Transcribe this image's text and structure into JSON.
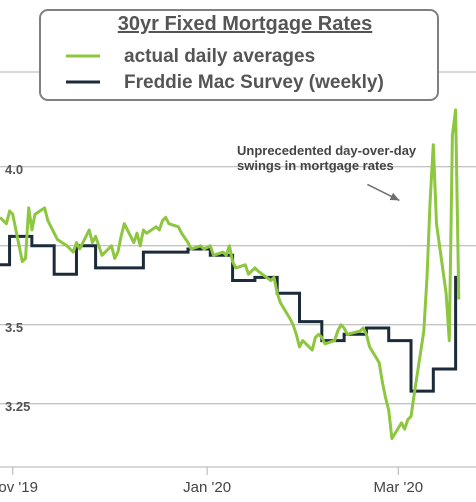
{
  "colors": {
    "actual": "#8dc63f",
    "survey": "#1b2b3a",
    "grid": "#b0b0b0",
    "arrow": "#6d6d6d"
  },
  "chart_data": {
    "type": "line",
    "title": "30yr Fixed Mortgage Rates",
    "xlabel": "",
    "ylabel": "",
    "ylim": [
      3.05,
      4.3
    ],
    "xlim": [
      "2019-10-28",
      "2020-03-21"
    ],
    "y_ticks": [
      {
        "value": 4.0,
        "label": "4.0"
      },
      {
        "value": 3.75,
        "label": ""
      },
      {
        "value": 3.5,
        "label": "3.5"
      },
      {
        "value": 3.25,
        "label": "3.25"
      }
    ],
    "x_ticks": [
      {
        "date": "2019-11-01",
        "label": "Nov '19"
      },
      {
        "date": "2020-01-01",
        "label": "Jan '20"
      },
      {
        "date": "2020-03-01",
        "label": "Mar '20"
      }
    ],
    "grid": true,
    "legend_position": "top",
    "annotation": {
      "lines": [
        "Unprecedented day-over-day",
        "swings in mortgage rates"
      ],
      "points_to": {
        "date": "2020-03-07",
        "value": 3.9
      }
    },
    "series": [
      {
        "name": "actual daily averages",
        "style": "line",
        "points": [
          [
            "2019-10-28",
            3.84
          ],
          [
            "2019-10-29",
            3.83
          ],
          [
            "2019-10-30",
            3.82
          ],
          [
            "2019-10-31",
            3.86
          ],
          [
            "2019-11-01",
            3.85
          ],
          [
            "2019-11-04",
            3.7
          ],
          [
            "2019-11-05",
            3.71
          ],
          [
            "2019-11-06",
            3.87
          ],
          [
            "2019-11-07",
            3.8
          ],
          [
            "2019-11-08",
            3.85
          ],
          [
            "2019-11-11",
            3.87
          ],
          [
            "2019-11-12",
            3.83
          ],
          [
            "2019-11-13",
            3.81
          ],
          [
            "2019-11-14",
            3.79
          ],
          [
            "2019-11-15",
            3.77
          ],
          [
            "2019-11-18",
            3.75
          ],
          [
            "2019-11-19",
            3.74
          ],
          [
            "2019-11-20",
            3.73
          ],
          [
            "2019-11-21",
            3.76
          ],
          [
            "2019-11-22",
            3.74
          ],
          [
            "2019-11-25",
            3.8
          ],
          [
            "2019-11-26",
            3.76
          ],
          [
            "2019-11-27",
            3.78
          ],
          [
            "2019-11-29",
            3.72
          ],
          [
            "2019-12-02",
            3.75
          ],
          [
            "2019-12-03",
            3.71
          ],
          [
            "2019-12-04",
            3.73
          ],
          [
            "2019-12-05",
            3.78
          ],
          [
            "2019-12-06",
            3.82
          ],
          [
            "2019-12-09",
            3.76
          ],
          [
            "2019-12-10",
            3.79
          ],
          [
            "2019-12-11",
            3.75
          ],
          [
            "2019-12-12",
            3.8
          ],
          [
            "2019-12-13",
            3.79
          ],
          [
            "2019-12-16",
            3.81
          ],
          [
            "2019-12-17",
            3.8
          ],
          [
            "2019-12-18",
            3.83
          ],
          [
            "2019-12-19",
            3.84
          ],
          [
            "2019-12-20",
            3.82
          ],
          [
            "2019-12-23",
            3.81
          ],
          [
            "2019-12-24",
            3.79
          ],
          [
            "2019-12-26",
            3.76
          ],
          [
            "2019-12-27",
            3.74
          ],
          [
            "2019-12-30",
            3.75
          ],
          [
            "2019-12-31",
            3.74
          ],
          [
            "2020-01-02",
            3.75
          ],
          [
            "2020-01-03",
            3.72
          ],
          [
            "2020-01-06",
            3.73
          ],
          [
            "2020-01-07",
            3.72
          ],
          [
            "2020-01-08",
            3.75
          ],
          [
            "2020-01-09",
            3.7
          ],
          [
            "2020-01-10",
            3.68
          ],
          [
            "2020-01-13",
            3.69
          ],
          [
            "2020-01-14",
            3.66
          ],
          [
            "2020-01-15",
            3.67
          ],
          [
            "2020-01-16",
            3.68
          ],
          [
            "2020-01-17",
            3.67
          ],
          [
            "2020-01-21",
            3.64
          ],
          [
            "2020-01-22",
            3.65
          ],
          [
            "2020-01-23",
            3.6
          ],
          [
            "2020-01-24",
            3.57
          ],
          [
            "2020-01-27",
            3.52
          ],
          [
            "2020-01-28",
            3.5
          ],
          [
            "2020-01-29",
            3.47
          ],
          [
            "2020-01-30",
            3.43
          ],
          [
            "2020-01-31",
            3.45
          ],
          [
            "2020-02-03",
            3.42
          ],
          [
            "2020-02-04",
            3.46
          ],
          [
            "2020-02-05",
            3.47
          ],
          [
            "2020-02-06",
            3.46
          ],
          [
            "2020-02-07",
            3.44
          ],
          [
            "2020-02-10",
            3.45
          ],
          [
            "2020-02-11",
            3.48
          ],
          [
            "2020-02-12",
            3.5
          ],
          [
            "2020-02-13",
            3.49
          ],
          [
            "2020-02-14",
            3.47
          ],
          [
            "2020-02-18",
            3.48
          ],
          [
            "2020-02-19",
            3.49
          ],
          [
            "2020-02-20",
            3.47
          ],
          [
            "2020-02-21",
            3.43
          ],
          [
            "2020-02-24",
            3.38
          ],
          [
            "2020-02-25",
            3.32
          ],
          [
            "2020-02-26",
            3.27
          ],
          [
            "2020-02-27",
            3.23
          ],
          [
            "2020-02-28",
            3.14
          ],
          [
            "2020-03-02",
            3.19
          ],
          [
            "2020-03-03",
            3.17
          ],
          [
            "2020-03-04",
            3.2
          ],
          [
            "2020-03-05",
            3.21
          ],
          [
            "2020-03-06",
            3.28
          ],
          [
            "2020-03-09",
            3.48
          ],
          [
            "2020-03-10",
            3.65
          ],
          [
            "2020-03-11",
            3.89
          ],
          [
            "2020-03-12",
            4.07
          ],
          [
            "2020-03-13",
            3.82
          ],
          [
            "2020-03-16",
            3.6
          ],
          [
            "2020-03-17",
            3.45
          ],
          [
            "2020-03-18",
            4.1
          ],
          [
            "2020-03-19",
            4.18
          ],
          [
            "2020-03-20",
            3.58
          ]
        ]
      },
      {
        "name": "Freddie Mac Survey (weekly)",
        "style": "step",
        "points": [
          [
            "2019-10-28",
            3.69
          ],
          [
            "2019-10-31",
            3.78
          ],
          [
            "2019-11-07",
            3.75
          ],
          [
            "2019-11-14",
            3.66
          ],
          [
            "2019-11-21",
            3.75
          ],
          [
            "2019-11-27",
            3.68
          ],
          [
            "2019-12-05",
            3.68
          ],
          [
            "2019-12-12",
            3.73
          ],
          [
            "2019-12-19",
            3.73
          ],
          [
            "2019-12-26",
            3.74
          ],
          [
            "2020-01-02",
            3.72
          ],
          [
            "2020-01-09",
            3.64
          ],
          [
            "2020-01-16",
            3.65
          ],
          [
            "2020-01-23",
            3.6
          ],
          [
            "2020-01-30",
            3.51
          ],
          [
            "2020-02-06",
            3.45
          ],
          [
            "2020-02-13",
            3.47
          ],
          [
            "2020-02-20",
            3.49
          ],
          [
            "2020-02-27",
            3.45
          ],
          [
            "2020-03-05",
            3.29
          ],
          [
            "2020-03-12",
            3.36
          ],
          [
            "2020-03-19",
            3.65
          ]
        ]
      }
    ]
  }
}
